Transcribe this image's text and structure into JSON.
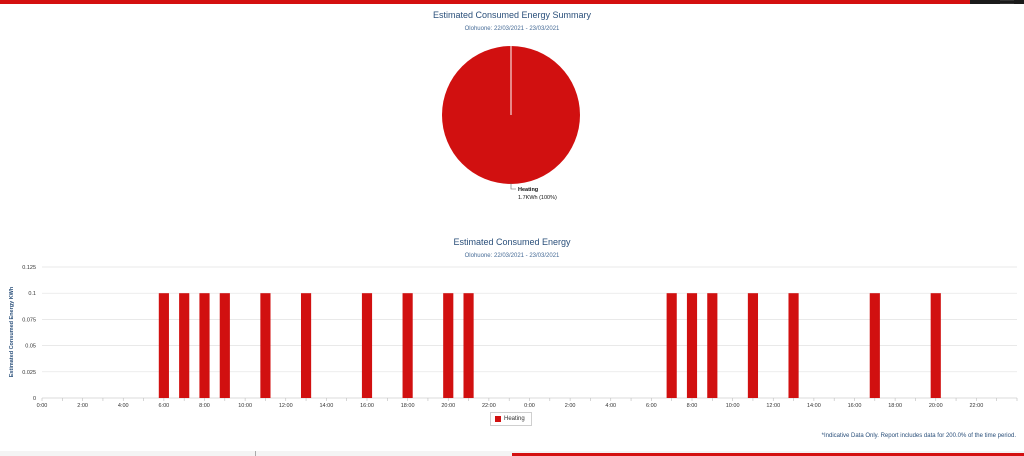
{
  "colors": {
    "heating": "#d11010",
    "title": "#2a4f7a",
    "grid": "#e2e2e2"
  },
  "icons": {
    "menu": "hamburger-menu-icon"
  },
  "summary": {
    "title": "Estimated Consumed Energy Summary",
    "subtitle": "Olohuone: 22/03/2021 - 23/03/2021"
  },
  "detail": {
    "title": "Estimated Consumed Energy",
    "subtitle": "Olohuone: 22/03/2021 - 23/03/2021"
  },
  "legend": {
    "heating": "Heating"
  },
  "footnote": "*Indicative Data Only. Report includes data for 200.0% of the time period.",
  "chart_data": [
    {
      "type": "pie",
      "title": "Estimated Consumed Energy Summary",
      "subtitle": "Olohuone: 22/03/2021 - 23/03/2021",
      "slices": [
        {
          "name": "Heating",
          "value": 1.7,
          "unit": "KWh",
          "percent": 100,
          "label_line1": "Heating",
          "label_line2": "1.7KWh (100%)"
        }
      ]
    },
    {
      "type": "bar",
      "title": "Estimated Consumed Energy",
      "subtitle": "Olohuone: 22/03/2021 - 23/03/2021",
      "xlabel": "",
      "ylabel": "Estimated Consumed Energy KWh",
      "ylim": [
        0,
        0.125
      ],
      "yticks": [
        "0",
        "0.025",
        "0.05",
        "0.075",
        "0.1",
        "0.125"
      ],
      "xticks": [
        "0:00",
        "2:00",
        "4:00",
        "6:00",
        "8:00",
        "10:00",
        "12:00",
        "14:00",
        "16:00",
        "18:00",
        "20:00",
        "22:00",
        "0:00",
        "2:00",
        "4:00",
        "6:00",
        "8:00",
        "10:00",
        "12:00",
        "14:00",
        "16:00",
        "18:00",
        "20:00",
        "22:00"
      ],
      "grid": true,
      "legend": "bottom-center",
      "series": [
        {
          "name": "Heating",
          "points": [
            {
              "hour": 6,
              "value": 0.1
            },
            {
              "hour": 7,
              "value": 0.1
            },
            {
              "hour": 8,
              "value": 0.1
            },
            {
              "hour": 9,
              "value": 0.1
            },
            {
              "hour": 11,
              "value": 0.1
            },
            {
              "hour": 13,
              "value": 0.1
            },
            {
              "hour": 16,
              "value": 0.1
            },
            {
              "hour": 18,
              "value": 0.1
            },
            {
              "hour": 20,
              "value": 0.1
            },
            {
              "hour": 21,
              "value": 0.1
            },
            {
              "hour": 31,
              "value": 0.1
            },
            {
              "hour": 32,
              "value": 0.1
            },
            {
              "hour": 33,
              "value": 0.1
            },
            {
              "hour": 35,
              "value": 0.1
            },
            {
              "hour": 37,
              "value": 0.1
            },
            {
              "hour": 41,
              "value": 0.1
            },
            {
              "hour": 44,
              "value": 0.1
            }
          ]
        }
      ]
    }
  ]
}
